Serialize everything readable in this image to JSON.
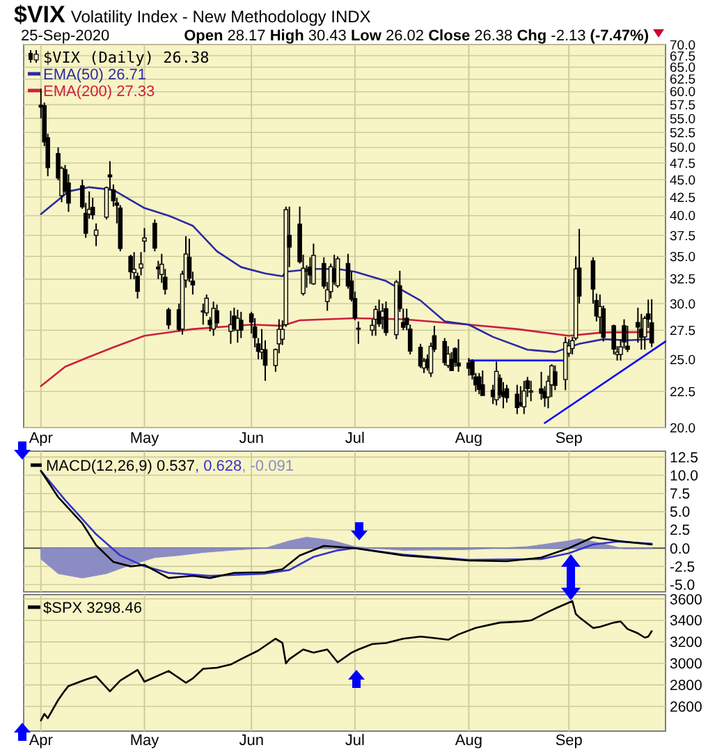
{
  "chart_data": [
    {
      "type": "candlestick",
      "title": "$VIX Volatility Index - New Methodology INDX",
      "subtitle": "25-Sep-2020",
      "annotations": [
        "Open 28.17 High 30.43 Low 26.02 Close 26.38 Chg -2.13 (-7.47%)"
      ],
      "legend_title": "$VIX (Daily) 26.38",
      "color": "#000000",
      "legend": "top left",
      "log": true,
      "grid": true,
      "xlim": [
        "2020-03-27",
        "2020-09-29"
      ],
      "xticks": [
        {
          "value": "2020-04-01",
          "label": "Apr"
        },
        {
          "value": "2020-05-01",
          "label": "May"
        },
        {
          "value": "2020-06-01",
          "label": "Jun"
        },
        {
          "value": "2020-07-01",
          "label": "Jul"
        },
        {
          "value": "2020-08-03",
          "label": "Aug"
        },
        {
          "value": "2020-09-01",
          "label": "Sep"
        }
      ],
      "ylim": [
        20,
        70
      ],
      "yticks": [
        {
          "value": 20,
          "label": "20.0"
        },
        {
          "value": 22.5,
          "label": "22.5"
        },
        {
          "value": 25,
          "label": "25.0"
        },
        {
          "value": 27.5,
          "label": "27.5"
        },
        {
          "value": 30,
          "label": "30.0"
        },
        {
          "value": 32.5,
          "label": "32.5"
        },
        {
          "value": 35,
          "label": "35.0"
        },
        {
          "value": 37.5,
          "label": "37.5"
        },
        {
          "value": 40,
          "label": "40.0"
        },
        {
          "value": 42.5,
          "label": "42.5"
        },
        {
          "value": 45,
          "label": "45.0"
        },
        {
          "value": 47.5,
          "label": "47.5"
        },
        {
          "value": 50,
          "label": "50.0"
        },
        {
          "value": 52.5,
          "label": "52.5"
        },
        {
          "value": 55,
          "label": "55.0"
        },
        {
          "value": 57.5,
          "label": "57.5"
        },
        {
          "value": 60,
          "label": "60.0"
        },
        {
          "value": 62.5,
          "label": "62.5"
        },
        {
          "value": 65,
          "label": "65.0"
        },
        {
          "value": 67.5,
          "label": "67.5"
        },
        {
          "value": 70,
          "label": "70.0"
        }
      ],
      "x": [
        "2020-04-01",
        "2020-04-02",
        "2020-04-03",
        "2020-04-06",
        "2020-04-07",
        "2020-04-08",
        "2020-04-09",
        "2020-04-13",
        "2020-04-14",
        "2020-04-15",
        "2020-04-16",
        "2020-04-17",
        "2020-04-20",
        "2020-04-21",
        "2020-04-22",
        "2020-04-23",
        "2020-04-24",
        "2020-04-27",
        "2020-04-28",
        "2020-04-29",
        "2020-04-30",
        "2020-05-01",
        "2020-05-04",
        "2020-05-05",
        "2020-05-06",
        "2020-05-07",
        "2020-05-08",
        "2020-05-11",
        "2020-05-12",
        "2020-05-13",
        "2020-05-14",
        "2020-05-15",
        "2020-05-18",
        "2020-05-19",
        "2020-05-20",
        "2020-05-21",
        "2020-05-22",
        "2020-05-26",
        "2020-05-27",
        "2020-05-28",
        "2020-05-29",
        "2020-06-01",
        "2020-06-02",
        "2020-06-03",
        "2020-06-04",
        "2020-06-05",
        "2020-06-08",
        "2020-06-09",
        "2020-06-10",
        "2020-06-11",
        "2020-06-12",
        "2020-06-15",
        "2020-06-16",
        "2020-06-17",
        "2020-06-18",
        "2020-06-19",
        "2020-06-22",
        "2020-06-23",
        "2020-06-24",
        "2020-06-25",
        "2020-06-26",
        "2020-06-29",
        "2020-06-30",
        "2020-07-01",
        "2020-07-02",
        "2020-07-06",
        "2020-07-07",
        "2020-07-08",
        "2020-07-09",
        "2020-07-10",
        "2020-07-13",
        "2020-07-14",
        "2020-07-15",
        "2020-07-16",
        "2020-07-17",
        "2020-07-20",
        "2020-07-21",
        "2020-07-22",
        "2020-07-23",
        "2020-07-24",
        "2020-07-27",
        "2020-07-28",
        "2020-07-29",
        "2020-07-30",
        "2020-07-31",
        "2020-08-03",
        "2020-08-04",
        "2020-08-05",
        "2020-08-06",
        "2020-08-07",
        "2020-08-10",
        "2020-08-11",
        "2020-08-12",
        "2020-08-13",
        "2020-08-14",
        "2020-08-17",
        "2020-08-18",
        "2020-08-19",
        "2020-08-20",
        "2020-08-21",
        "2020-08-24",
        "2020-08-25",
        "2020-08-26",
        "2020-08-27",
        "2020-08-28",
        "2020-08-31",
        "2020-09-01",
        "2020-09-02",
        "2020-09-03",
        "2020-09-04",
        "2020-09-08",
        "2020-09-09",
        "2020-09-10",
        "2020-09-11",
        "2020-09-14",
        "2020-09-15",
        "2020-09-16",
        "2020-09-17",
        "2020-09-18",
        "2020-09-21",
        "2020-09-22",
        "2020-09-23",
        "2020-09-24",
        "2020-09-25"
      ],
      "ohlc": [
        [
          57.4,
          60.6,
          55.0,
          57.06
        ],
        [
          57.3,
          57.9,
          50.2,
          50.91
        ],
        [
          51.6,
          52.3,
          45.5,
          46.8
        ],
        [
          49.0,
          50.0,
          44.9,
          45.24
        ],
        [
          42.7,
          47.0,
          41.8,
          46.7
        ],
        [
          46.5,
          47.2,
          43.1,
          43.35
        ],
        [
          44.5,
          45.8,
          40.5,
          41.67
        ],
        [
          44.1,
          45.0,
          40.9,
          41.17
        ],
        [
          40.3,
          41.7,
          37.2,
          37.76
        ],
        [
          40.2,
          43.3,
          39.6,
          40.84
        ],
        [
          41.1,
          42.4,
          39.5,
          40.11
        ],
        [
          37.5,
          39.0,
          36.2,
          38.15
        ],
        [
          39.8,
          44.0,
          39.5,
          43.83
        ],
        [
          45.7,
          47.8,
          43.6,
          45.41
        ],
        [
          43.5,
          44.3,
          41.2,
          41.98
        ],
        [
          41.7,
          42.4,
          39.0,
          41.38
        ],
        [
          41.0,
          41.4,
          35.6,
          35.93
        ],
        [
          35.0,
          35.2,
          32.5,
          33.29
        ],
        [
          33.2,
          35.5,
          32.5,
          33.57
        ],
        [
          32.8,
          33.2,
          30.5,
          31.23
        ],
        [
          33.7,
          35.5,
          32.9,
          34.15
        ],
        [
          36.8,
          38.4,
          35.5,
          37.19
        ],
        [
          39.0,
          39.5,
          35.6,
          35.97
        ],
        [
          33.8,
          34.5,
          32.5,
          33.61
        ],
        [
          33.0,
          35.3,
          32.1,
          34.12
        ],
        [
          32.7,
          33.6,
          30.9,
          31.44
        ],
        [
          29.4,
          29.6,
          27.6,
          27.98
        ],
        [
          29.4,
          30.0,
          27.4,
          27.57
        ],
        [
          27.6,
          33.4,
          27.1,
          33.04
        ],
        [
          32.4,
          37.4,
          31.6,
          35.28
        ],
        [
          34.9,
          37.1,
          32.2,
          32.61
        ],
        [
          32.3,
          33.3,
          30.9,
          31.89
        ],
        [
          29.2,
          30.0,
          28.0,
          29.3
        ],
        [
          29.1,
          30.9,
          28.8,
          30.53
        ],
        [
          28.4,
          28.7,
          27.4,
          27.99
        ],
        [
          27.6,
          30.2,
          27.0,
          29.53
        ],
        [
          29.3,
          29.9,
          27.8,
          28.16
        ],
        [
          27.4,
          29.3,
          26.3,
          28.01
        ],
        [
          28.8,
          29.6,
          27.4,
          27.62
        ],
        [
          27.5,
          29.4,
          26.4,
          28.59
        ],
        [
          28.4,
          29.2,
          26.8,
          27.51
        ],
        [
          29.0,
          29.2,
          27.2,
          28.23
        ],
        [
          27.8,
          28.6,
          26.0,
          26.84
        ],
        [
          26.3,
          26.8,
          25.0,
          25.66
        ],
        [
          25.6,
          27.6,
          25.0,
          25.81
        ],
        [
          25.8,
          26.6,
          23.3,
          24.52
        ],
        [
          24.5,
          25.9,
          24.0,
          25.81
        ],
        [
          26.3,
          28.5,
          25.5,
          27.57
        ],
        [
          26.7,
          28.4,
          26.2,
          27.57
        ],
        [
          28.0,
          41.2,
          27.8,
          40.79
        ],
        [
          37.5,
          41.2,
          33.8,
          36.09
        ],
        [
          38.9,
          41.2,
          34.2,
          34.4
        ],
        [
          31.0,
          35.2,
          30.8,
          33.67
        ],
        [
          33.4,
          34.0,
          31.6,
          33.47
        ],
        [
          33.8,
          34.9,
          32.0,
          32.94
        ],
        [
          32.0,
          36.5,
          31.9,
          35.12
        ],
        [
          34.2,
          34.9,
          31.5,
          31.77
        ],
        [
          30.2,
          32.2,
          29.3,
          31.37
        ],
        [
          31.2,
          34.2,
          30.5,
          33.84
        ],
        [
          33.6,
          35.2,
          31.9,
          32.22
        ],
        [
          31.8,
          35.0,
          31.6,
          34.73
        ],
        [
          34.2,
          35.3,
          31.5,
          31.78
        ],
        [
          32.3,
          33.3,
          30.2,
          30.43
        ],
        [
          30.5,
          31.2,
          28.4,
          28.62
        ],
        [
          27.6,
          28.3,
          26.3,
          27.68
        ],
        [
          27.5,
          28.5,
          27.0,
          27.94
        ],
        [
          28.5,
          29.8,
          27.0,
          29.43
        ],
        [
          29.2,
          30.4,
          27.8,
          28.08
        ],
        [
          28.7,
          30.0,
          27.6,
          29.26
        ],
        [
          29.5,
          30.2,
          27.0,
          27.29
        ],
        [
          27.1,
          32.4,
          26.7,
          32.19
        ],
        [
          31.8,
          33.4,
          29.2,
          29.52
        ],
        [
          28.2,
          29.5,
          27.5,
          27.76
        ],
        [
          28.6,
          29.5,
          27.5,
          28.0
        ],
        [
          27.6,
          28.0,
          25.4,
          25.68
        ],
        [
          26.0,
          26.3,
          24.3,
          24.46
        ],
        [
          24.3,
          25.1,
          23.9,
          24.84
        ],
        [
          25.0,
          25.4,
          24.1,
          24.32
        ],
        [
          23.9,
          26.4,
          23.6,
          26.08
        ],
        [
          27.0,
          27.9,
          25.6,
          25.84
        ],
        [
          26.5,
          26.8,
          24.5,
          24.74
        ],
        [
          24.5,
          26.1,
          24.3,
          25.44
        ],
        [
          25.0,
          25.6,
          24.1,
          24.1
        ],
        [
          25.9,
          26.0,
          24.4,
          24.76
        ],
        [
          24.7,
          26.7,
          24.0,
          24.46
        ],
        [
          24.7,
          25.1,
          23.7,
          24.28
        ],
        [
          24.8,
          25.0,
          23.4,
          23.76
        ],
        [
          23.6,
          23.9,
          22.5,
          22.99
        ],
        [
          23.6,
          23.9,
          22.3,
          22.65
        ],
        [
          23.0,
          24.1,
          22.2,
          22.21
        ],
        [
          22.6,
          23.0,
          21.6,
          22.13
        ],
        [
          21.9,
          24.8,
          21.5,
          24.03
        ],
        [
          23.5,
          23.8,
          22.0,
          22.28
        ],
        [
          22.5,
          23.2,
          21.3,
          22.13
        ],
        [
          22.7,
          23.0,
          21.7,
          22.05
        ],
        [
          22.3,
          23.0,
          20.9,
          21.35
        ],
        [
          21.7,
          22.9,
          21.4,
          21.51
        ],
        [
          21.4,
          23.3,
          20.9,
          22.54
        ],
        [
          23.3,
          23.6,
          22.1,
          22.72
        ],
        [
          22.5,
          23.3,
          21.8,
          22.54
        ],
        [
          22.7,
          24.0,
          21.9,
          22.37
        ],
        [
          22.5,
          22.9,
          21.4,
          22.03
        ],
        [
          22.1,
          23.7,
          21.3,
          23.27
        ],
        [
          23.0,
          24.6,
          22.1,
          24.47
        ],
        [
          24.0,
          24.5,
          22.6,
          22.96
        ],
        [
          23.4,
          26.9,
          22.6,
          26.41
        ],
        [
          25.5,
          26.7,
          25.2,
          26.12
        ],
        [
          25.9,
          26.9,
          25.4,
          26.57
        ],
        [
          26.8,
          35.0,
          26.6,
          33.6
        ],
        [
          33.7,
          38.3,
          30.0,
          30.75
        ],
        [
          34.5,
          34.9,
          30.0,
          31.46
        ],
        [
          30.3,
          31.0,
          28.3,
          28.81
        ],
        [
          28.7,
          30.9,
          27.2,
          29.71
        ],
        [
          29.5,
          29.8,
          26.5,
          26.87
        ],
        [
          27.9,
          28.0,
          25.4,
          25.85
        ],
        [
          25.4,
          26.1,
          24.9,
          25.59
        ],
        [
          25.4,
          26.7,
          24.9,
          26.04
        ],
        [
          27.9,
          28.5,
          25.9,
          26.46
        ],
        [
          26.1,
          27.9,
          25.6,
          25.83
        ],
        [
          28.2,
          29.6,
          26.4,
          27.78
        ],
        [
          27.6,
          29.0,
          25.8,
          26.86
        ],
        [
          26.9,
          28.8,
          25.8,
          28.58
        ],
        [
          29.0,
          30.4,
          27.7,
          28.51
        ],
        [
          28.17,
          30.43,
          26.02,
          26.38
        ]
      ],
      "series": [
        {
          "type": "line",
          "name": "EMA(50) 26.71",
          "color": "#2a2aa0",
          "x": [
            "2020-04-01",
            "2020-04-09",
            "2020-04-15",
            "2020-04-22",
            "2020-05-01",
            "2020-05-08",
            "2020-05-15",
            "2020-05-22",
            "2020-05-29",
            "2020-06-05",
            "2020-06-10",
            "2020-06-11",
            "2020-06-19",
            "2020-06-26",
            "2020-07-01",
            "2020-07-10",
            "2020-07-20",
            "2020-07-27",
            "2020-08-03",
            "2020-08-10",
            "2020-08-20",
            "2020-08-28",
            "2020-09-04",
            "2020-09-11",
            "2020-09-18",
            "2020-09-25"
          ],
          "values": [
            40.2,
            43.3,
            43.9,
            43.5,
            41.0,
            40.0,
            38.7,
            35.6,
            33.8,
            33.1,
            32.8,
            33.3,
            33.6,
            33.6,
            33.3,
            32.3,
            30.3,
            28.3,
            28.0,
            26.9,
            25.8,
            25.6,
            26.3,
            26.7,
            26.6,
            26.71
          ]
        },
        {
          "type": "line",
          "name": "EMA(200) 27.33",
          "color": "#cc1f3c",
          "x": [
            "2020-04-01",
            "2020-04-08",
            "2020-04-15",
            "2020-04-22",
            "2020-05-01",
            "2020-05-15",
            "2020-06-01",
            "2020-06-10",
            "2020-06-15",
            "2020-07-01",
            "2020-07-15",
            "2020-08-03",
            "2020-08-17",
            "2020-09-01",
            "2020-09-11",
            "2020-09-25"
          ],
          "values": [
            22.9,
            24.4,
            25.2,
            26.0,
            27.0,
            27.6,
            28.0,
            27.9,
            28.4,
            28.6,
            28.5,
            28.0,
            27.6,
            27.0,
            27.3,
            27.33
          ]
        },
        {
          "type": "line",
          "color": "#0000ff",
          "x": [
            "2020-08-03",
            "2020-08-31"
          ],
          "values": [
            24.9,
            24.9
          ]
        },
        {
          "type": "line",
          "color": "#0000ff",
          "x": [
            "2020-08-25",
            "2020-09-29"
          ],
          "values": [
            20.3,
            26.5
          ]
        }
      ]
    },
    {
      "type": "line",
      "legend": "top left",
      "grid": true,
      "tick_labels": "y",
      "xlim": [
        "2020-03-27",
        "2020-09-29"
      ],
      "xticks": [
        {
          "value": "2020-04-01",
          "label": null
        },
        {
          "value": "2020-05-01",
          "label": null
        },
        {
          "value": "2020-06-01",
          "label": null
        },
        {
          "value": "2020-07-01",
          "label": null
        },
        {
          "value": "2020-08-03",
          "label": null
        },
        {
          "value": "2020-09-01",
          "label": null
        }
      ],
      "ylim": [
        -6,
        13.3
      ],
      "yticks": [
        {
          "value": -5,
          "label": "-5.0"
        },
        {
          "value": -2.5,
          "label": "-2.5"
        },
        {
          "value": 0,
          "label": "0.0"
        },
        {
          "value": 2.5,
          "label": "2.5"
        },
        {
          "value": 5,
          "label": "5.0"
        },
        {
          "value": 7.5,
          "label": "7.5"
        },
        {
          "value": 10,
          "label": "10.0"
        },
        {
          "value": 12.5,
          "label": "12.5"
        }
      ],
      "ref_lines": [
        {
          "axis": "y",
          "value": 0,
          "color": "#555555"
        }
      ],
      "series": [
        {
          "type": "line",
          "name": "MACD(12,26,9) 0.537",
          "color": "#000000",
          "x": [
            "2020-04-01",
            "2020-04-06",
            "2020-04-13",
            "2020-04-17",
            "2020-04-22",
            "2020-04-27",
            "2020-05-01",
            "2020-05-08",
            "2020-05-15",
            "2020-05-20",
            "2020-05-27",
            "2020-06-05",
            "2020-06-10",
            "2020-06-15",
            "2020-06-22",
            "2020-07-01",
            "2020-07-15",
            "2020-08-03",
            "2020-08-14",
            "2020-08-24",
            "2020-09-01",
            "2020-09-08",
            "2020-09-15",
            "2020-09-25"
          ],
          "values": [
            10.6,
            7.0,
            3.4,
            0.4,
            -1.9,
            -2.5,
            -2.3,
            -4.1,
            -3.8,
            -4.1,
            -3.4,
            -3.3,
            -2.9,
            -1.0,
            0.3,
            0.0,
            -1.0,
            -1.7,
            -1.8,
            -1.3,
            0.0,
            1.5,
            1.0,
            0.5
          ]
        },
        {
          "type": "line",
          "name": ", 0.628",
          "color": "#3333cc",
          "x": [
            "2020-04-01",
            "2020-04-08",
            "2020-04-17",
            "2020-04-24",
            "2020-05-01",
            "2020-05-08",
            "2020-05-20",
            "2020-06-05",
            "2020-06-12",
            "2020-06-19",
            "2020-06-26",
            "2020-07-01",
            "2020-07-15",
            "2020-08-03",
            "2020-08-24",
            "2020-09-01",
            "2020-09-08",
            "2020-09-15",
            "2020-09-25"
          ],
          "values": [
            10.6,
            6.6,
            1.9,
            -1.0,
            -2.5,
            -3.4,
            -3.8,
            -3.5,
            -3.0,
            -1.2,
            -0.3,
            0.0,
            -0.9,
            -1.6,
            -1.5,
            -0.7,
            0.5,
            0.9,
            0.6
          ]
        },
        {
          "type": "area",
          "name": ", -0.091",
          "color": "#8c8cc4",
          "x": [
            "2020-04-01",
            "2020-04-06",
            "2020-04-13",
            "2020-04-20",
            "2020-04-27",
            "2020-05-04",
            "2020-05-11",
            "2020-05-18",
            "2020-05-26",
            "2020-06-05",
            "2020-06-12",
            "2020-06-17",
            "2020-06-24",
            "2020-07-01",
            "2020-07-15",
            "2020-08-03",
            "2020-08-20",
            "2020-09-01",
            "2020-09-04",
            "2020-09-10",
            "2020-09-17",
            "2020-09-25"
          ],
          "values": [
            -1.5,
            -3.5,
            -4.1,
            -3.5,
            -2.3,
            -1.3,
            -1.0,
            -0.6,
            -0.3,
            0.0,
            1.0,
            1.5,
            1.1,
            0.2,
            -0.3,
            -0.2,
            0.2,
            1.0,
            1.3,
            0.7,
            -0.1,
            -0.1
          ]
        }
      ]
    },
    {
      "type": "line",
      "legend": "top left",
      "grid": true,
      "xlim": [
        "2020-03-27",
        "2020-09-29"
      ],
      "xticks": [
        {
          "value": "2020-04-01",
          "label": "Apr"
        },
        {
          "value": "2020-05-01",
          "label": "May"
        },
        {
          "value": "2020-06-01",
          "label": "Jun"
        },
        {
          "value": "2020-07-01",
          "label": "Jul"
        },
        {
          "value": "2020-08-03",
          "label": "Aug"
        },
        {
          "value": "2020-09-01",
          "label": "Sep"
        }
      ],
      "ylim": [
        2370,
        3640
      ],
      "yticks": [
        2600,
        2800,
        3000,
        3200,
        3400,
        3600
      ],
      "series": [
        {
          "type": "line",
          "name": "$SPX 3298.46",
          "color": "#000000",
          "x": [
            "2020-04-01",
            "2020-04-02",
            "2020-04-03",
            "2020-04-06",
            "2020-04-08",
            "2020-04-09",
            "2020-04-14",
            "2020-04-17",
            "2020-04-21",
            "2020-04-24",
            "2020-04-29",
            "2020-05-01",
            "2020-05-08",
            "2020-05-13",
            "2020-05-15",
            "2020-05-18",
            "2020-05-22",
            "2020-05-26",
            "2020-05-29",
            "2020-06-03",
            "2020-06-08",
            "2020-06-10",
            "2020-06-11",
            "2020-06-12",
            "2020-06-16",
            "2020-06-19",
            "2020-06-23",
            "2020-06-26",
            "2020-06-30",
            "2020-07-02",
            "2020-07-06",
            "2020-07-10",
            "2020-07-15",
            "2020-07-20",
            "2020-07-23",
            "2020-07-28",
            "2020-07-31",
            "2020-08-05",
            "2020-08-12",
            "2020-08-18",
            "2020-08-21",
            "2020-08-26",
            "2020-08-28",
            "2020-09-02",
            "2020-09-03",
            "2020-09-04",
            "2020-09-08",
            "2020-09-10",
            "2020-09-14",
            "2020-09-16",
            "2020-09-18",
            "2020-09-21",
            "2020-09-23",
            "2020-09-24",
            "2020-09-25"
          ],
          "values": [
            2470,
            2530,
            2490,
            2660,
            2750,
            2790,
            2850,
            2880,
            2740,
            2840,
            2940,
            2830,
            2930,
            2820,
            2860,
            2950,
            2960,
            2990,
            3040,
            3120,
            3230,
            3190,
            3000,
            3040,
            3130,
            3100,
            3130,
            3010,
            3100,
            3130,
            3180,
            3190,
            3230,
            3250,
            3240,
            3220,
            3270,
            3330,
            3380,
            3390,
            3400,
            3480,
            3510,
            3580,
            3460,
            3430,
            3330,
            3340,
            3380,
            3390,
            3320,
            3280,
            3240,
            3250,
            3300
          ]
        }
      ]
    }
  ]
}
